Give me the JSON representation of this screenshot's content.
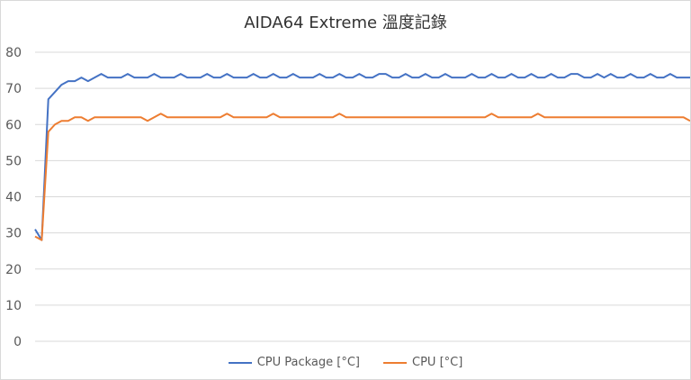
{
  "chart_data": {
    "type": "line",
    "title": "AIDA64  Extreme 溫度記錄",
    "xlabel": "",
    "ylabel": "",
    "ylim": [
      0,
      80
    ],
    "yticks": [
      "0",
      "10",
      "20",
      "30",
      "40",
      "50",
      "60",
      "70",
      "80"
    ],
    "grid": true,
    "legend_position": "bottom",
    "series": [
      {
        "name": "CPU Package [°C]",
        "color": "#4472c4",
        "values": [
          31,
          28,
          67,
          69,
          71,
          72,
          72,
          73,
          72,
          73,
          74,
          73,
          73,
          73,
          74,
          73,
          73,
          73,
          74,
          73,
          73,
          73,
          74,
          73,
          73,
          73,
          74,
          73,
          73,
          74,
          73,
          73,
          73,
          74,
          73,
          73,
          74,
          73,
          73,
          74,
          73,
          73,
          73,
          74,
          73,
          73,
          74,
          73,
          73,
          74,
          73,
          73,
          74,
          74,
          73,
          73,
          74,
          73,
          73,
          74,
          73,
          73,
          74,
          73,
          73,
          73,
          74,
          73,
          73,
          74,
          73,
          73,
          74,
          73,
          73,
          74,
          73,
          73,
          74,
          73,
          73,
          74,
          74,
          73,
          73,
          74,
          73,
          74,
          73,
          73,
          74,
          73,
          73,
          74,
          73,
          73,
          74,
          73,
          73,
          73
        ]
      },
      {
        "name": "CPU [°C]",
        "color": "#ed7d31",
        "values": [
          29,
          28,
          58,
          60,
          61,
          61,
          62,
          62,
          61,
          62,
          62,
          62,
          62,
          62,
          62,
          62,
          62,
          61,
          62,
          63,
          62,
          62,
          62,
          62,
          62,
          62,
          62,
          62,
          62,
          63,
          62,
          62,
          62,
          62,
          62,
          62,
          63,
          62,
          62,
          62,
          62,
          62,
          62,
          62,
          62,
          62,
          63,
          62,
          62,
          62,
          62,
          62,
          62,
          62,
          62,
          62,
          62,
          62,
          62,
          62,
          62,
          62,
          62,
          62,
          62,
          62,
          62,
          62,
          62,
          63,
          62,
          62,
          62,
          62,
          62,
          62,
          63,
          62,
          62,
          62,
          62,
          62,
          62,
          62,
          62,
          62,
          62,
          62,
          62,
          62,
          62,
          62,
          62,
          62,
          62,
          62,
          62,
          62,
          62,
          61
        ]
      }
    ]
  }
}
